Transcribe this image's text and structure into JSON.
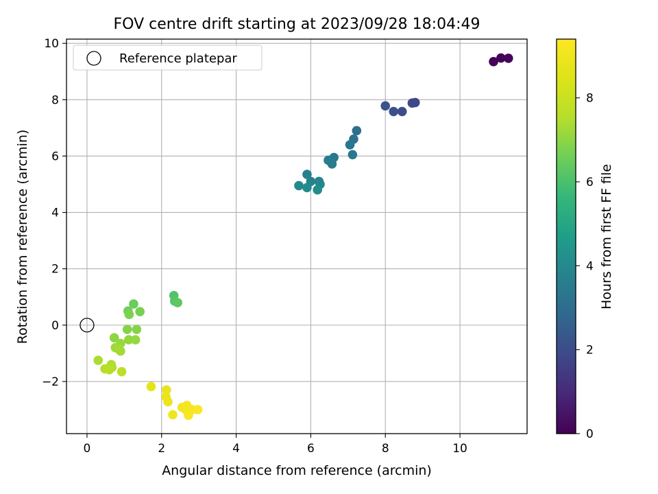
{
  "chart_data": {
    "type": "scatter",
    "title": "FOV centre drift starting at 2023/09/28 18:04:49",
    "xlabel": "Angular distance from reference (arcmin)",
    "ylabel": "Rotation from reference (arcmin)",
    "xlim": [
      -0.55,
      11.8
    ],
    "ylim": [
      -3.85,
      10.15
    ],
    "xticks": [
      "0",
      "2",
      "4",
      "6",
      "8",
      "10"
    ],
    "yticks": [
      "−2",
      "0",
      "2",
      "4",
      "6",
      "8",
      "10"
    ],
    "xtick_values": [
      0,
      2,
      4,
      6,
      8,
      10
    ],
    "ytick_values": [
      -2,
      0,
      2,
      4,
      6,
      8,
      10
    ],
    "grid": true,
    "legend": {
      "placement": "upper-left",
      "entries": [
        "Reference platepar"
      ]
    },
    "reference_point": {
      "x": 0,
      "y": 0
    },
    "colorbar": {
      "label": "Hours from first FF file",
      "colormap": "viridis",
      "range": [
        0,
        9.4
      ],
      "ticks": [
        "0",
        "2",
        "4",
        "6",
        "8"
      ],
      "tick_values": [
        0,
        2,
        4,
        6,
        8
      ]
    },
    "points": [
      {
        "x": 10.9,
        "y": 9.35,
        "c": 0.05
      },
      {
        "x": 11.1,
        "y": 9.48,
        "c": 0.1
      },
      {
        "x": 11.3,
        "y": 9.47,
        "c": 0.15
      },
      {
        "x": 8.0,
        "y": 7.78,
        "c": 2.2
      },
      {
        "x": 8.22,
        "y": 7.58,
        "c": 2.1
      },
      {
        "x": 8.45,
        "y": 7.58,
        "c": 2.0
      },
      {
        "x": 8.72,
        "y": 7.88,
        "c": 1.9
      },
      {
        "x": 8.8,
        "y": 7.9,
        "c": 1.85
      },
      {
        "x": 7.23,
        "y": 6.9,
        "c": 3.1
      },
      {
        "x": 7.15,
        "y": 6.6,
        "c": 3.2
      },
      {
        "x": 7.05,
        "y": 6.4,
        "c": 3.3
      },
      {
        "x": 7.12,
        "y": 6.05,
        "c": 3.35
      },
      {
        "x": 6.62,
        "y": 5.95,
        "c": 3.4
      },
      {
        "x": 6.47,
        "y": 5.85,
        "c": 3.5
      },
      {
        "x": 6.57,
        "y": 5.72,
        "c": 3.55
      },
      {
        "x": 5.9,
        "y": 5.35,
        "c": 3.7
      },
      {
        "x": 6.0,
        "y": 5.1,
        "c": 3.8
      },
      {
        "x": 6.22,
        "y": 5.1,
        "c": 3.85
      },
      {
        "x": 6.25,
        "y": 5.0,
        "c": 3.9
      },
      {
        "x": 5.68,
        "y": 4.95,
        "c": 4.0
      },
      {
        "x": 5.9,
        "y": 4.88,
        "c": 4.05
      },
      {
        "x": 6.18,
        "y": 4.8,
        "c": 4.1
      },
      {
        "x": 2.33,
        "y": 1.05,
        "c": 6.1
      },
      {
        "x": 2.35,
        "y": 0.85,
        "c": 6.2
      },
      {
        "x": 2.43,
        "y": 0.8,
        "c": 6.3
      },
      {
        "x": 1.25,
        "y": 0.75,
        "c": 6.5
      },
      {
        "x": 1.1,
        "y": 0.5,
        "c": 6.6
      },
      {
        "x": 1.42,
        "y": 0.48,
        "c": 6.7
      },
      {
        "x": 1.13,
        "y": 0.38,
        "c": 6.75
      },
      {
        "x": 1.08,
        "y": -0.15,
        "c": 6.85
      },
      {
        "x": 1.33,
        "y": -0.15,
        "c": 6.9
      },
      {
        "x": 0.73,
        "y": -0.45,
        "c": 7.0
      },
      {
        "x": 1.12,
        "y": -0.52,
        "c": 7.05
      },
      {
        "x": 1.3,
        "y": -0.52,
        "c": 7.1
      },
      {
        "x": 0.9,
        "y": -0.65,
        "c": 7.15
      },
      {
        "x": 0.76,
        "y": -0.8,
        "c": 7.2
      },
      {
        "x": 0.85,
        "y": -0.85,
        "c": 7.25
      },
      {
        "x": 0.9,
        "y": -0.92,
        "c": 7.3
      },
      {
        "x": 0.3,
        "y": -1.25,
        "c": 7.4
      },
      {
        "x": 0.65,
        "y": -1.4,
        "c": 7.45
      },
      {
        "x": 0.67,
        "y": -1.5,
        "c": 7.5
      },
      {
        "x": 0.48,
        "y": -1.55,
        "c": 7.55
      },
      {
        "x": 0.6,
        "y": -1.58,
        "c": 7.6
      },
      {
        "x": 0.93,
        "y": -1.65,
        "c": 7.7
      },
      {
        "x": 1.72,
        "y": -2.18,
        "c": 8.6
      },
      {
        "x": 2.13,
        "y": -2.3,
        "c": 8.8
      },
      {
        "x": 2.12,
        "y": -2.55,
        "c": 8.85
      },
      {
        "x": 2.17,
        "y": -2.72,
        "c": 8.9
      },
      {
        "x": 2.3,
        "y": -3.18,
        "c": 9.0
      },
      {
        "x": 2.55,
        "y": -2.92,
        "c": 9.05
      },
      {
        "x": 2.65,
        "y": -3.0,
        "c": 9.1
      },
      {
        "x": 2.68,
        "y": -2.85,
        "c": 9.15
      },
      {
        "x": 2.82,
        "y": -3.0,
        "c": 9.2
      },
      {
        "x": 2.72,
        "y": -3.2,
        "c": 9.25
      },
      {
        "x": 2.97,
        "y": -3.0,
        "c": 9.3
      }
    ]
  }
}
